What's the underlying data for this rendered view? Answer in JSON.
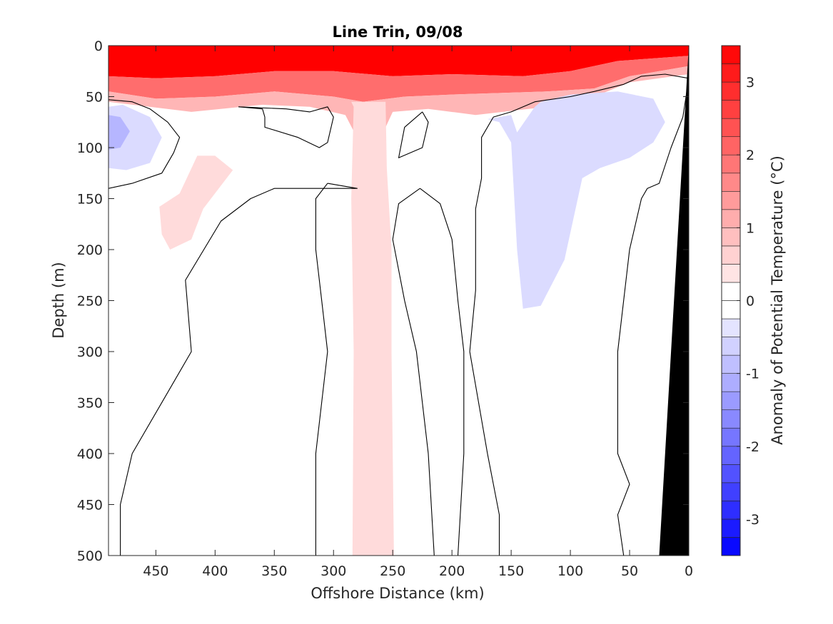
{
  "chart_data": {
    "type": "heatmap",
    "title": "Line Trin, 09/08",
    "xlabel": "Offshore Distance (km)",
    "ylabel": "Depth (m)",
    "xlim": [
      490,
      0
    ],
    "ylim": [
      0,
      500
    ],
    "x_reversed": true,
    "y_reversed": true,
    "x_ticks": [
      450,
      400,
      350,
      300,
      250,
      200,
      150,
      100,
      50,
      0
    ],
    "y_ticks": [
      0,
      50,
      100,
      150,
      200,
      250,
      300,
      350,
      400,
      450,
      500
    ],
    "grid": false,
    "colorbar": {
      "label": "Anomaly of Potential Temperature (°C)",
      "clim": [
        -3.5,
        3.5
      ],
      "level_step": 0.25,
      "ticks": [
        3,
        2,
        1,
        0,
        -1,
        -2,
        -3
      ],
      "colors": {
        "positive": "#ff0000",
        "negative": "#0000ff",
        "neutral": "#ffffff"
      }
    },
    "contour_level": 0,
    "contour_color": "#000000",
    "bathymetry_color": "#000000",
    "anomaly_regions": [
      {
        "anomaly": 3.5,
        "polygon": [
          [
            490,
            0
          ],
          [
            0,
            0
          ],
          [
            0,
            10
          ],
          [
            60,
            15
          ],
          [
            100,
            25
          ],
          [
            140,
            30
          ],
          [
            200,
            28
          ],
          [
            250,
            30
          ],
          [
            300,
            25
          ],
          [
            350,
            25
          ],
          [
            400,
            30
          ],
          [
            450,
            32
          ],
          [
            490,
            30
          ]
        ]
      },
      {
        "anomaly": 2.0,
        "polygon": [
          [
            490,
            30
          ],
          [
            450,
            32
          ],
          [
            400,
            30
          ],
          [
            350,
            25
          ],
          [
            300,
            25
          ],
          [
            250,
            30
          ],
          [
            200,
            28
          ],
          [
            140,
            30
          ],
          [
            100,
            25
          ],
          [
            60,
            15
          ],
          [
            0,
            10
          ],
          [
            0,
            20
          ],
          [
            50,
            30
          ],
          [
            80,
            42
          ],
          [
            120,
            45
          ],
          [
            200,
            48
          ],
          [
            240,
            50
          ],
          [
            275,
            55
          ],
          [
            300,
            50
          ],
          [
            350,
            45
          ],
          [
            400,
            50
          ],
          [
            450,
            52
          ],
          [
            490,
            45
          ]
        ]
      },
      {
        "anomaly": 1.0,
        "polygon": [
          [
            490,
            45
          ],
          [
            450,
            52
          ],
          [
            400,
            50
          ],
          [
            350,
            45
          ],
          [
            300,
            50
          ],
          [
            275,
            55
          ],
          [
            240,
            50
          ],
          [
            200,
            48
          ],
          [
            120,
            45
          ],
          [
            80,
            42
          ],
          [
            50,
            30
          ],
          [
            0,
            20
          ],
          [
            0,
            28
          ],
          [
            50,
            36
          ],
          [
            80,
            50
          ],
          [
            120,
            60
          ],
          [
            180,
            68
          ],
          [
            220,
            62
          ],
          [
            250,
            65
          ],
          [
            262,
            95
          ],
          [
            270,
            130
          ],
          [
            278,
            95
          ],
          [
            290,
            68
          ],
          [
            320,
            60
          ],
          [
            360,
            58
          ],
          [
            420,
            65
          ],
          [
            490,
            55
          ]
        ]
      },
      {
        "anomaly": 0.5,
        "polygon": [
          [
            285,
            55
          ],
          [
            256,
            55
          ],
          [
            255,
            120
          ],
          [
            251,
            200
          ],
          [
            251,
            300
          ],
          [
            249,
            500
          ],
          [
            284,
            500
          ],
          [
            283,
            300
          ],
          [
            285,
            150
          ],
          [
            283,
            60
          ]
        ]
      },
      {
        "anomaly": 0.5,
        "polygon": [
          [
            430,
            145
          ],
          [
            415,
            108
          ],
          [
            400,
            108
          ],
          [
            385,
            122
          ],
          [
            410,
            160
          ],
          [
            420,
            190
          ],
          [
            438,
            200
          ],
          [
            445,
            185
          ],
          [
            447,
            158
          ]
        ]
      },
      {
        "anomaly": -0.5,
        "polygon": [
          [
            145,
            85
          ],
          [
            150,
            68
          ],
          [
            170,
            72
          ],
          [
            160,
            75
          ],
          [
            150,
            95
          ],
          [
            145,
            200
          ],
          [
            140,
            258
          ],
          [
            125,
            255
          ],
          [
            105,
            210
          ],
          [
            90,
            130
          ],
          [
            75,
            120
          ],
          [
            50,
            110
          ],
          [
            30,
            95
          ],
          [
            20,
            75
          ],
          [
            30,
            52
          ],
          [
            60,
            45
          ],
          [
            100,
            48
          ],
          [
            125,
            55
          ],
          [
            130,
            60
          ]
        ]
      },
      {
        "anomaly": -0.5,
        "polygon": [
          [
            490,
            60
          ],
          [
            478,
            58
          ],
          [
            455,
            70
          ],
          [
            445,
            90
          ],
          [
            455,
            115
          ],
          [
            475,
            122
          ],
          [
            490,
            120
          ]
        ]
      },
      {
        "anomaly": -1.0,
        "polygon": [
          [
            490,
            68
          ],
          [
            480,
            70
          ],
          [
            472,
            84
          ],
          [
            480,
            100
          ],
          [
            490,
            102
          ]
        ]
      }
    ],
    "contours": [
      [
        [
          490,
          53
        ],
        [
          470,
          55
        ],
        [
          455,
          62
        ],
        [
          440,
          75
        ],
        [
          430,
          90
        ],
        [
          435,
          105
        ],
        [
          445,
          125
        ],
        [
          470,
          135
        ],
        [
          490,
          140
        ]
      ],
      [
        [
          0,
          32
        ],
        [
          20,
          28
        ],
        [
          40,
          30
        ],
        [
          55,
          38
        ],
        [
          80,
          45
        ],
        [
          100,
          50
        ],
        [
          130,
          55
        ],
        [
          150,
          65
        ],
        [
          165,
          70
        ],
        [
          175,
          90
        ],
        [
          175,
          130
        ],
        [
          180,
          160
        ],
        [
          180,
          240
        ],
        [
          185,
          300
        ],
        [
          170,
          400
        ],
        [
          160,
          460
        ],
        [
          160,
          500
        ]
      ],
      [
        [
          0,
          32
        ],
        [
          5,
          70
        ],
        [
          15,
          100
        ],
        [
          25,
          135
        ],
        [
          35,
          140
        ],
        [
          40,
          150
        ],
        [
          45,
          175
        ],
        [
          50,
          200
        ],
        [
          55,
          250
        ],
        [
          60,
          300
        ],
        [
          60,
          400
        ],
        [
          50,
          430
        ],
        [
          60,
          460
        ],
        [
          55,
          500
        ]
      ],
      [
        [
          358,
          70
        ],
        [
          360,
          62
        ],
        [
          380,
          60
        ],
        [
          340,
          62
        ],
        [
          320,
          65
        ],
        [
          305,
          60
        ],
        [
          300,
          70
        ],
        [
          305,
          95
        ],
        [
          312,
          100
        ],
        [
          330,
          90
        ],
        [
          358,
          80
        ],
        [
          358,
          70
        ]
      ],
      [
        [
          225,
          65
        ],
        [
          220,
          75
        ],
        [
          225,
          100
        ],
        [
          245,
          110
        ],
        [
          240,
          80
        ],
        [
          230,
          70
        ],
        [
          225,
          65
        ]
      ],
      [
        [
          227,
          140
        ],
        [
          210,
          155
        ],
        [
          200,
          190
        ],
        [
          195,
          250
        ],
        [
          190,
          300
        ],
        [
          190,
          400
        ],
        [
          195,
          500
        ]
      ],
      [
        [
          227,
          140
        ],
        [
          245,
          155
        ],
        [
          250,
          190
        ],
        [
          240,
          250
        ],
        [
          230,
          300
        ],
        [
          220,
          400
        ],
        [
          215,
          500
        ]
      ],
      [
        [
          305,
          135
        ],
        [
          315,
          150
        ],
        [
          315,
          200
        ],
        [
          310,
          250
        ],
        [
          305,
          300
        ],
        [
          315,
          400
        ],
        [
          315,
          500
        ]
      ],
      [
        [
          305,
          135
        ],
        [
          280,
          140
        ],
        [
          350,
          140
        ],
        [
          370,
          150
        ],
        [
          395,
          172
        ],
        [
          425,
          230
        ],
        [
          420,
          300
        ],
        [
          440,
          340
        ],
        [
          470,
          400
        ],
        [
          480,
          450
        ],
        [
          480,
          500
        ]
      ]
    ],
    "bathymetry": [
      [
        0,
        0
      ],
      [
        0,
        500
      ],
      [
        25,
        500
      ],
      [
        5,
        100
      ]
    ]
  }
}
